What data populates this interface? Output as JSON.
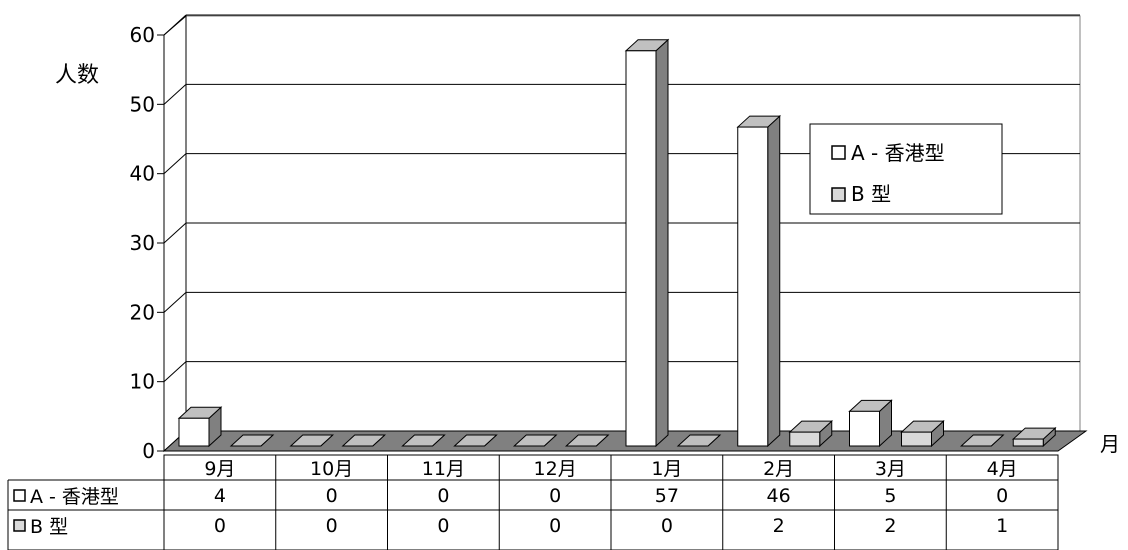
{
  "chart_data": {
    "type": "bar",
    "title": "",
    "ylabel": "人数",
    "xlabel": "月",
    "ylim": [
      0,
      60
    ],
    "yticks": [
      "0",
      "10",
      "20",
      "30",
      "40",
      "50",
      "60"
    ],
    "grid": true,
    "categories": [
      "9月",
      "10月",
      "11月",
      "12月",
      "1月",
      "2月",
      "3月",
      "4月"
    ],
    "series": [
      {
        "name": "A - 香港型",
        "values": [
          4,
          0,
          0,
          0,
          57,
          46,
          5,
          0
        ],
        "color": "#ffffff",
        "side_color": "#808080",
        "top_color": "#c0c0c0"
      },
      {
        "name": "B 型",
        "values": [
          0,
          0,
          0,
          0,
          0,
          2,
          2,
          1
        ],
        "color": "#d9d9d9",
        "side_color": "#808080",
        "top_color": "#bfbfbf"
      }
    ],
    "legend": {
      "position": "right",
      "entries": [
        "A - 香港型",
        "B 型"
      ]
    },
    "table": {
      "row_labels": [
        "A - 香港型",
        "B 型"
      ],
      "cells": [
        [
          "4",
          "0",
          "0",
          "0",
          "57",
          "46",
          "5",
          "0"
        ],
        [
          "0",
          "0",
          "0",
          "0",
          "0",
          "2",
          "2",
          "1"
        ]
      ]
    },
    "colors": {
      "floor": "#808080",
      "grid": "#000000",
      "wall": "#ffffff"
    }
  }
}
